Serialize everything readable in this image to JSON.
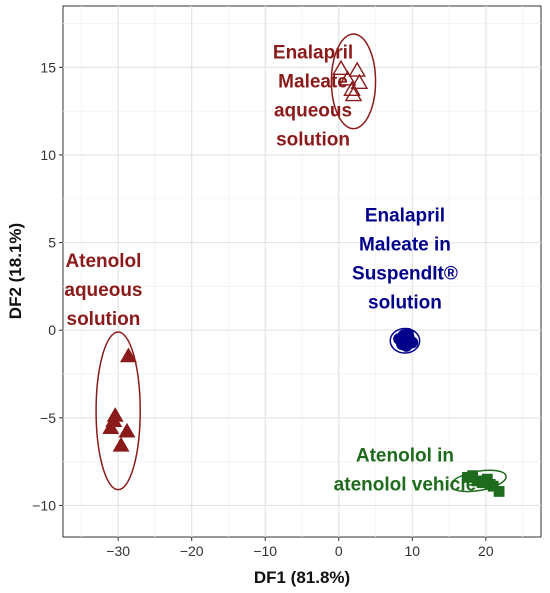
{
  "chart_data": {
    "type": "scatter",
    "xlabel": "DF1 (81.8%)",
    "ylabel": "DF2 (18.1%)",
    "xlim": [
      -37.5,
      27.5
    ],
    "ylim": [
      -11.8,
      18.5
    ],
    "x_ticks": [
      -30,
      -20,
      -10,
      0,
      10,
      20
    ],
    "y_ticks": [
      -10,
      -5,
      0,
      5,
      10,
      15
    ],
    "x_tick_labels": [
      "−30",
      "−20",
      "−10",
      "0",
      "10",
      "20"
    ],
    "y_tick_labels": [
      "−10",
      "−5",
      "0",
      "5",
      "10",
      "15"
    ],
    "grid": true,
    "legend": "none",
    "series": [
      {
        "marker": "triangle-open",
        "color": "#8b1a1a",
        "ellipse": {
          "cx": 2.0,
          "cy": 14.2,
          "rx": 3.0,
          "ry": 2.7,
          "angle": 0
        },
        "points": [
          [
            0.3,
            14.9
          ],
          [
            2.5,
            14.8
          ],
          [
            1.2,
            14.3
          ],
          [
            2.8,
            14.1
          ],
          [
            1.8,
            13.7
          ],
          [
            2.0,
            13.4
          ]
        ],
        "label": [
          "Enalapril",
          "Maleate",
          "aqueous",
          "solution"
        ],
        "label_pos": [
          -3.5,
          15.5
        ]
      },
      {
        "marker": "circle",
        "color": "#00008b",
        "ellipse": {
          "cx": 9.0,
          "cy": -0.6,
          "rx": 2.0,
          "ry": 0.7,
          "angle": 0
        },
        "points": [
          [
            8.2,
            -0.5
          ],
          [
            8.8,
            -0.3
          ],
          [
            9.5,
            -0.4
          ],
          [
            10.0,
            -0.7
          ],
          [
            9.2,
            -0.9
          ],
          [
            8.6,
            -0.8
          ],
          [
            9.4,
            -0.2
          ],
          [
            8.9,
            -0.6
          ]
        ],
        "label": [
          "Enalapril",
          "Maleate in",
          "SuspendIt®",
          "solution"
        ],
        "label_pos": [
          9.0,
          6.2
        ]
      },
      {
        "marker": "triangle",
        "color": "#8b1a1a",
        "ellipse": {
          "cx": -30.0,
          "cy": -4.6,
          "rx": 3.0,
          "ry": 4.5,
          "angle": 0
        },
        "points": [
          [
            -28.6,
            -1.5
          ],
          [
            -30.4,
            -4.9
          ],
          [
            -30.6,
            -5.2
          ],
          [
            -31.0,
            -5.6
          ],
          [
            -28.8,
            -5.8
          ],
          [
            -29.6,
            -6.6
          ]
        ],
        "label": [
          "Atenolol",
          "aqueous",
          "solution"
        ],
        "label_pos": [
          -32.0,
          3.6
        ]
      },
      {
        "marker": "square",
        "color": "#1e6b1e",
        "ellipse": {
          "cx": 19.0,
          "cy": -8.6,
          "rx": 3.8,
          "ry": 0.55,
          "angle": -10
        },
        "points": [
          [
            17.5,
            -8.4
          ],
          [
            18.2,
            -8.3
          ],
          [
            18.8,
            -8.6
          ],
          [
            19.5,
            -8.7
          ],
          [
            20.2,
            -8.5
          ],
          [
            21.0,
            -8.9
          ],
          [
            21.8,
            -9.2
          ],
          [
            20.6,
            -8.8
          ]
        ],
        "label": [
          "Atenolol in",
          "atenolol vehicle"
        ],
        "label_pos": [
          9.0,
          -7.5
        ]
      }
    ]
  }
}
